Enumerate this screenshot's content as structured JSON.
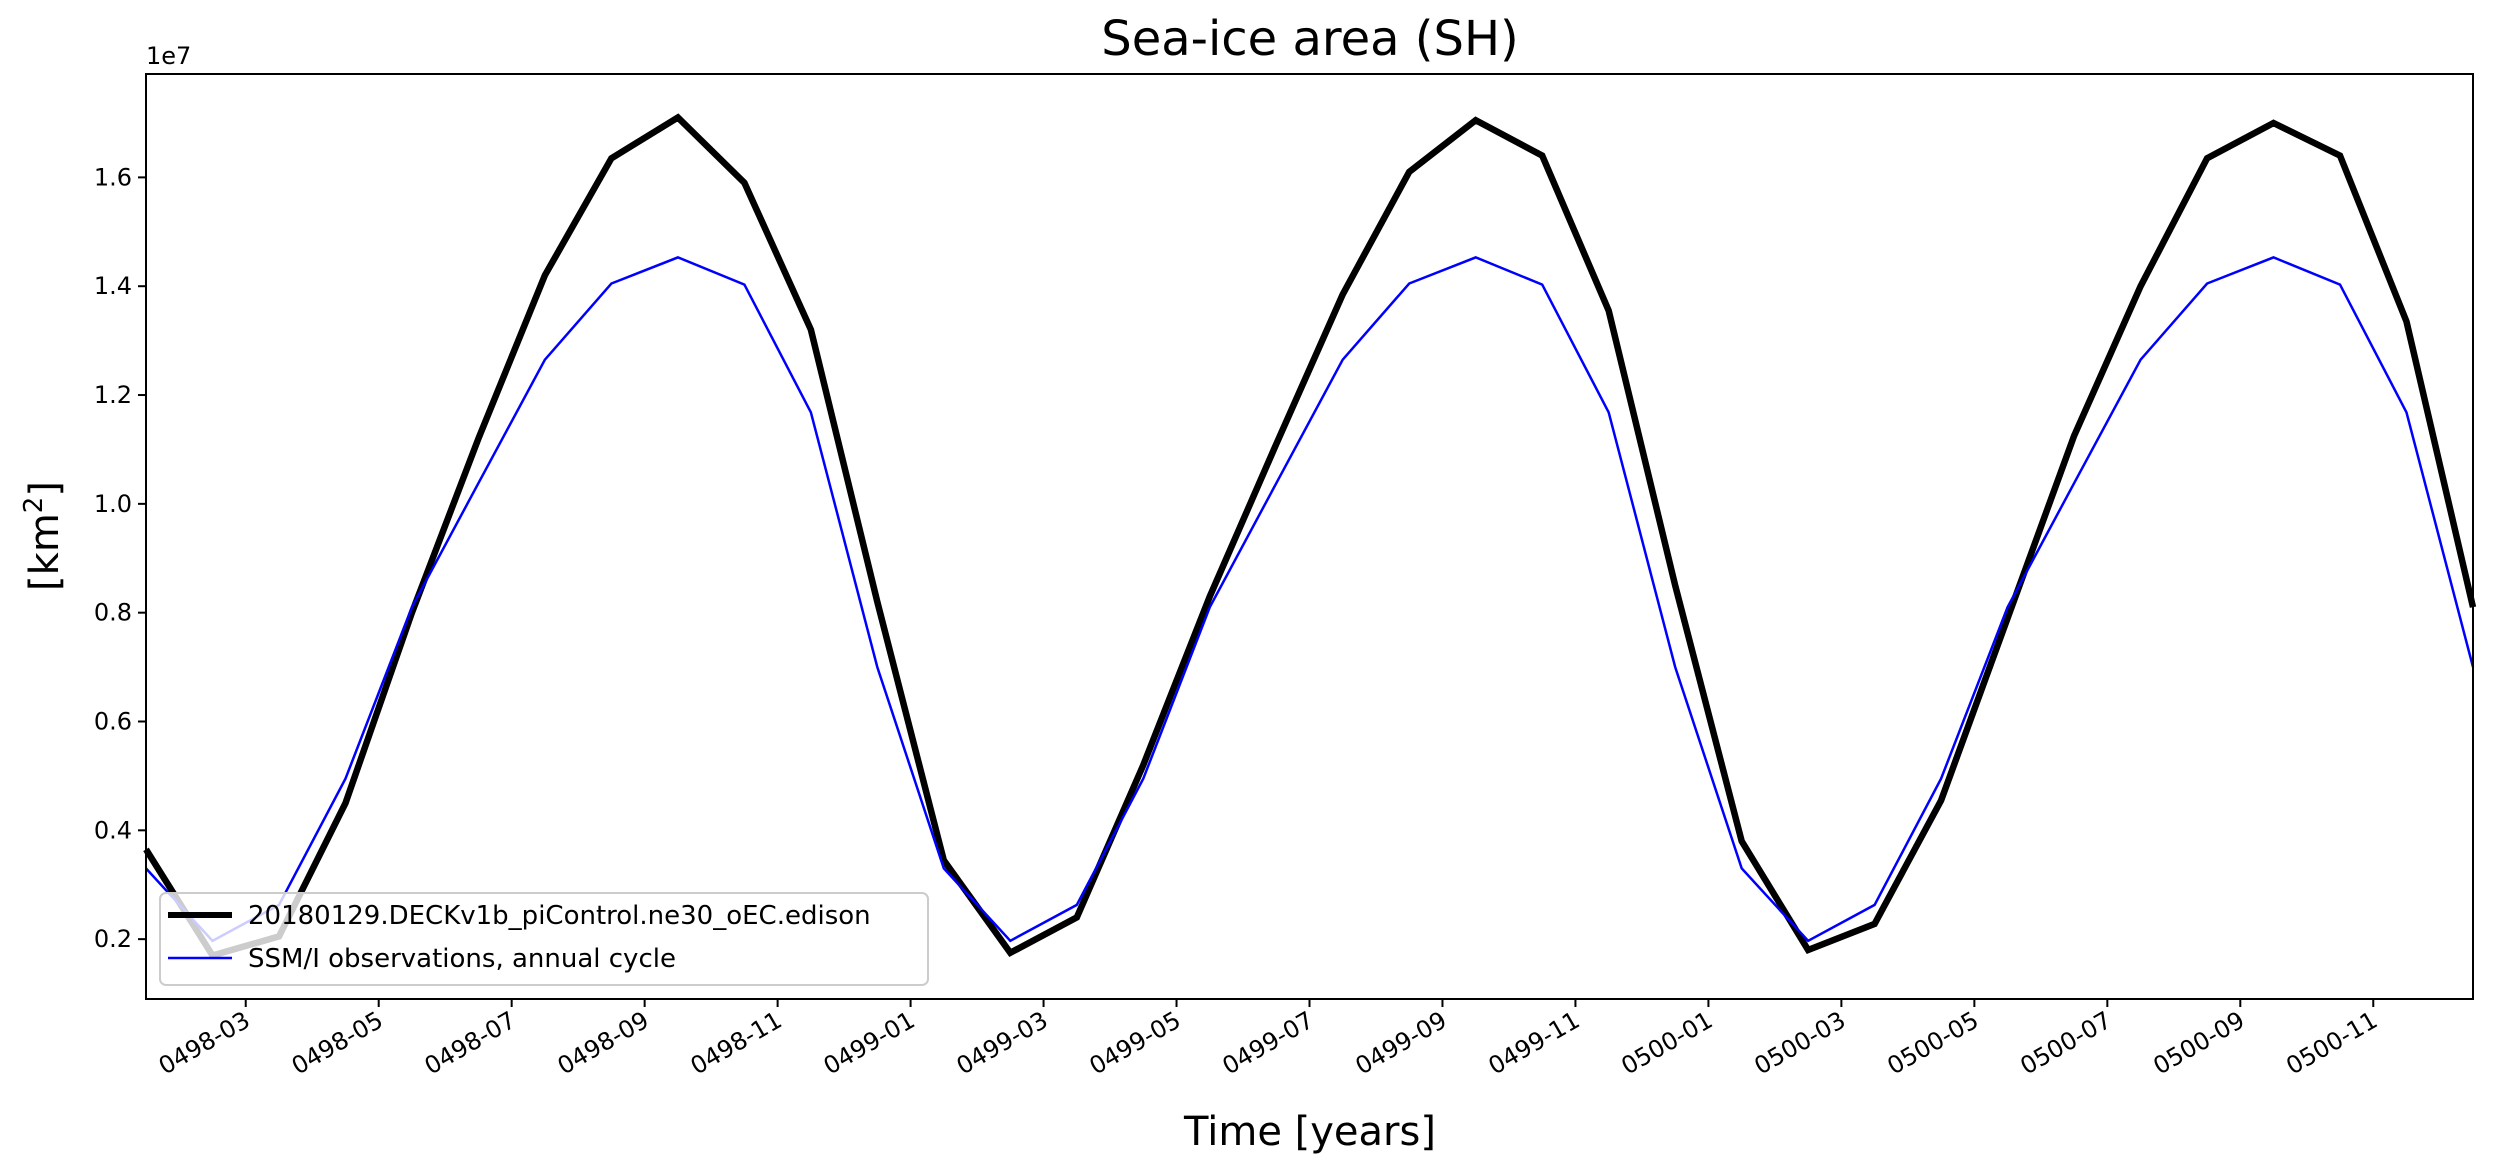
{
  "chart_data": {
    "type": "line",
    "title": "Sea-ice area (SH)",
    "xlabel": "Time [years]",
    "ylabel": "[km",
    "ylabel_superscript": "2",
    "ylabel_close": "]",
    "y_scale_label": "1e7",
    "y_tick_values": [
      0.2,
      0.4,
      0.6,
      0.8,
      1.0,
      1.2,
      1.4,
      1.6
    ],
    "y_tick_labels": [
      "0.2",
      "0.4",
      "0.6",
      "0.8",
      "1.0",
      "1.2",
      "1.4",
      "1.6"
    ],
    "ylim": [
      0.09,
      1.79
    ],
    "xlim": [
      0,
      35
    ],
    "x_tick_positions": [
      1.5,
      3.5,
      5.5,
      7.5,
      9.5,
      11.5,
      13.5,
      15.5,
      17.5,
      19.5,
      21.5,
      23.5,
      25.5,
      27.5,
      29.5,
      31.5,
      33.5
    ],
    "x_tick_labels": [
      "0498-03",
      "0498-05",
      "0498-07",
      "0498-09",
      "0498-11",
      "0499-01",
      "0499-03",
      "0499-05",
      "0499-07",
      "0499-09",
      "0499-11",
      "0500-01",
      "0500-03",
      "0500-05",
      "0500-07",
      "0500-09",
      "0500-11"
    ],
    "series": [
      {
        "name": "20180129.DECKv1b_piControl.ne30_oEC.edison",
        "color": "#000000",
        "x": [
          0,
          1,
          2,
          3,
          4,
          5,
          6,
          7,
          8,
          9,
          10,
          11,
          12,
          13,
          14,
          15,
          16,
          17,
          18,
          19,
          20,
          21,
          22,
          23,
          24,
          25,
          26,
          27,
          28,
          29,
          30,
          31,
          32,
          33,
          34,
          35
        ],
        "values": [
          0.365,
          0.17,
          0.205,
          0.45,
          0.8,
          1.12,
          1.42,
          1.635,
          1.71,
          1.59,
          1.32,
          0.82,
          0.345,
          0.175,
          0.24,
          0.52,
          0.83,
          1.11,
          1.385,
          1.61,
          1.705,
          1.64,
          1.355,
          0.85,
          0.38,
          0.18,
          0.228,
          0.455,
          0.79,
          1.125,
          1.4,
          1.635,
          1.7,
          1.64,
          1.335,
          0.81
        ]
      },
      {
        "name": "SSM/I observations, annual cycle",
        "color": "#0000ff",
        "x": [
          0,
          1,
          2,
          3,
          4,
          5,
          6,
          7,
          8,
          9,
          10,
          11,
          12,
          13,
          14,
          15,
          16,
          17,
          18,
          19,
          20,
          21,
          22,
          23,
          24,
          25,
          26,
          27,
          28,
          29,
          30,
          31,
          32,
          33,
          34,
          35
        ],
        "values": [
          0.33,
          0.197,
          0.263,
          0.495,
          0.81,
          1.038,
          1.265,
          1.405,
          1.453,
          1.403,
          1.168,
          0.7,
          0.33,
          0.197,
          0.263,
          0.495,
          0.81,
          1.038,
          1.265,
          1.405,
          1.453,
          1.403,
          1.168,
          0.7,
          0.33,
          0.197,
          0.263,
          0.495,
          0.81,
          1.038,
          1.265,
          1.405,
          1.453,
          1.403,
          1.168,
          0.7
        ]
      }
    ],
    "legend_position": "lower-left"
  }
}
